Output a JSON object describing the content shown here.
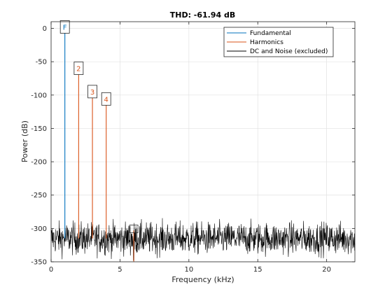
{
  "chart_data": {
    "type": "line",
    "title": "THD: -61.94 dB",
    "xlabel": "Frequency (kHz)",
    "ylabel": "Power (dB)",
    "xlim": [
      0,
      22.05
    ],
    "ylim": [
      -350,
      10
    ],
    "xticks": [
      0,
      5,
      10,
      15,
      20
    ],
    "yticks": [
      0,
      -50,
      -100,
      -150,
      -200,
      -250,
      -300,
      -350
    ],
    "grid": true,
    "legend_position": "top-right",
    "series": [
      {
        "name": "Fundamental",
        "color": "#0072BD",
        "style": "stem",
        "x": [
          1.0
        ],
        "y": [
          -2
        ]
      },
      {
        "name": "Harmonics",
        "color": "#D95319",
        "style": "stem",
        "x": [
          2.0,
          3.0,
          4.0
        ],
        "y": [
          -64,
          -99,
          -110
        ]
      },
      {
        "name": "DC and Noise (excluded)",
        "color": "#000000",
        "style": "noise",
        "baseline": -315,
        "spread": 12,
        "x_start": 0,
        "x_end": 22.05
      }
    ],
    "markers": [
      {
        "label": "F",
        "x": 1.0,
        "y": -2,
        "color": "#0072BD"
      },
      {
        "label": "2",
        "x": 2.0,
        "y": -64,
        "color": "#D95319"
      },
      {
        "label": "3",
        "x": 3.0,
        "y": -99,
        "color": "#D95319"
      },
      {
        "label": "4",
        "x": 4.0,
        "y": -110,
        "color": "#D95319"
      }
    ],
    "excluded_dip": {
      "x": 6.0,
      "y": -350
    }
  }
}
